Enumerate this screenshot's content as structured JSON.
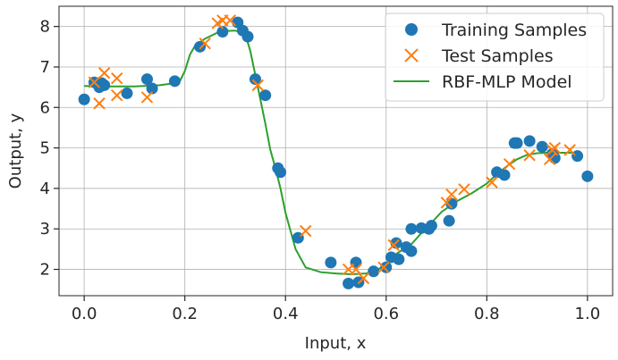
{
  "chart_data": {
    "type": "scatter",
    "xlabel": "Input, x",
    "ylabel": "Output, y",
    "xlim": [
      -0.05,
      1.05
    ],
    "ylim": [
      1.35,
      8.5
    ],
    "xticks": [
      0.0,
      0.2,
      0.4,
      0.6,
      0.8,
      1.0
    ],
    "xtick_labels": [
      "0.0",
      "0.2",
      "0.4",
      "0.6",
      "0.8",
      "1.0"
    ],
    "yticks": [
      2,
      3,
      4,
      5,
      6,
      7,
      8
    ],
    "ytick_labels": [
      "2",
      "3",
      "4",
      "5",
      "6",
      "7",
      "8"
    ],
    "grid": true,
    "legend_position": "top-right",
    "colors": {
      "training": "#1f77b4",
      "test": "#ff7f0e",
      "model": "#2ca02c"
    },
    "series": [
      {
        "name": "Training Samples",
        "kind": "scatter-circle",
        "points": [
          [
            0.0,
            6.2
          ],
          [
            0.02,
            6.62
          ],
          [
            0.03,
            6.5
          ],
          [
            0.035,
            6.6
          ],
          [
            0.04,
            6.55
          ],
          [
            0.085,
            6.35
          ],
          [
            0.125,
            6.7
          ],
          [
            0.135,
            6.47
          ],
          [
            0.18,
            6.65
          ],
          [
            0.23,
            7.5
          ],
          [
            0.275,
            7.87
          ],
          [
            0.305,
            8.1
          ],
          [
            0.315,
            7.9
          ],
          [
            0.325,
            7.75
          ],
          [
            0.34,
            6.7
          ],
          [
            0.36,
            6.3
          ],
          [
            0.385,
            4.5
          ],
          [
            0.39,
            4.4
          ],
          [
            0.425,
            2.78
          ],
          [
            0.49,
            2.17
          ],
          [
            0.525,
            1.65
          ],
          [
            0.54,
            2.17
          ],
          [
            0.545,
            1.68
          ],
          [
            0.575,
            1.95
          ],
          [
            0.6,
            2.05
          ],
          [
            0.61,
            2.3
          ],
          [
            0.62,
            2.65
          ],
          [
            0.625,
            2.25
          ],
          [
            0.64,
            2.55
          ],
          [
            0.65,
            2.45
          ],
          [
            0.65,
            3.0
          ],
          [
            0.67,
            3.02
          ],
          [
            0.685,
            3.0
          ],
          [
            0.69,
            3.08
          ],
          [
            0.725,
            3.2
          ],
          [
            0.73,
            3.62
          ],
          [
            0.82,
            4.4
          ],
          [
            0.835,
            4.33
          ],
          [
            0.855,
            5.12
          ],
          [
            0.86,
            5.12
          ],
          [
            0.885,
            5.17
          ],
          [
            0.91,
            5.03
          ],
          [
            0.93,
            4.85
          ],
          [
            0.935,
            4.75
          ],
          [
            0.98,
            4.8
          ],
          [
            1.0,
            4.3
          ]
        ]
      },
      {
        "name": "Test Samples",
        "kind": "scatter-x",
        "points": [
          [
            0.02,
            6.62
          ],
          [
            0.03,
            6.1
          ],
          [
            0.04,
            6.85
          ],
          [
            0.065,
            6.3
          ],
          [
            0.065,
            6.72
          ],
          [
            0.125,
            6.25
          ],
          [
            0.24,
            7.58
          ],
          [
            0.265,
            8.08
          ],
          [
            0.275,
            8.15
          ],
          [
            0.29,
            8.15
          ],
          [
            0.345,
            6.55
          ],
          [
            0.44,
            2.95
          ],
          [
            0.525,
            2.0
          ],
          [
            0.54,
            2.0
          ],
          [
            0.555,
            1.78
          ],
          [
            0.595,
            2.05
          ],
          [
            0.615,
            2.6
          ],
          [
            0.72,
            3.65
          ],
          [
            0.73,
            3.85
          ],
          [
            0.755,
            3.98
          ],
          [
            0.81,
            4.15
          ],
          [
            0.845,
            4.6
          ],
          [
            0.885,
            4.82
          ],
          [
            0.925,
            4.72
          ],
          [
            0.93,
            4.95
          ],
          [
            0.935,
            5.0
          ],
          [
            0.965,
            4.95
          ]
        ]
      },
      {
        "name": "RBF-MLP Model",
        "kind": "line",
        "points": [
          [
            0.0,
            6.53
          ],
          [
            0.05,
            6.52
          ],
          [
            0.1,
            6.52
          ],
          [
            0.15,
            6.55
          ],
          [
            0.18,
            6.6
          ],
          [
            0.19,
            6.65
          ],
          [
            0.2,
            6.9
          ],
          [
            0.21,
            7.3
          ],
          [
            0.22,
            7.52
          ],
          [
            0.24,
            7.7
          ],
          [
            0.27,
            7.88
          ],
          [
            0.3,
            7.9
          ],
          [
            0.32,
            7.82
          ],
          [
            0.33,
            7.4
          ],
          [
            0.34,
            6.8
          ],
          [
            0.35,
            6.2
          ],
          [
            0.36,
            5.6
          ],
          [
            0.37,
            4.95
          ],
          [
            0.38,
            4.5
          ],
          [
            0.39,
            4.0
          ],
          [
            0.4,
            3.4
          ],
          [
            0.42,
            2.5
          ],
          [
            0.44,
            2.05
          ],
          [
            0.47,
            1.93
          ],
          [
            0.5,
            1.9
          ],
          [
            0.53,
            1.88
          ],
          [
            0.56,
            1.9
          ],
          [
            0.58,
            1.97
          ],
          [
            0.6,
            2.12
          ],
          [
            0.62,
            2.38
          ],
          [
            0.65,
            2.62
          ],
          [
            0.67,
            2.9
          ],
          [
            0.69,
            3.15
          ],
          [
            0.71,
            3.42
          ],
          [
            0.74,
            3.68
          ],
          [
            0.77,
            3.88
          ],
          [
            0.8,
            4.12
          ],
          [
            0.82,
            4.35
          ],
          [
            0.84,
            4.55
          ],
          [
            0.86,
            4.72
          ],
          [
            0.88,
            4.83
          ],
          [
            0.9,
            4.87
          ],
          [
            0.92,
            4.88
          ],
          [
            0.94,
            4.88
          ],
          [
            0.97,
            4.88
          ],
          [
            0.98,
            4.88
          ]
        ]
      }
    ]
  }
}
